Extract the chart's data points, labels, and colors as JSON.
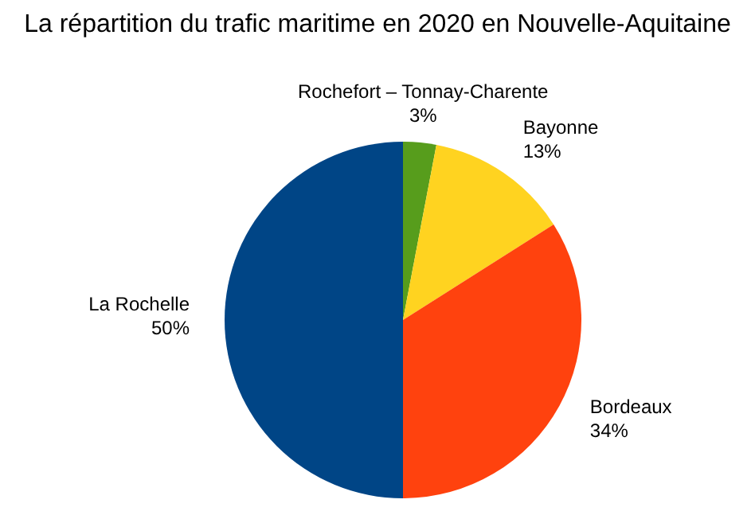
{
  "chart_data": {
    "type": "pie",
    "title": "La répartition du trafic maritime en 2020 en Nouvelle-Aquitaine",
    "categories": [
      "Rochefort – Tonnay-Charente",
      "Bayonne",
      "Bordeaux",
      "La Rochelle"
    ],
    "values": [
      3,
      13,
      34,
      50
    ],
    "colors": [
      "#579d1c",
      "#ffd320",
      "#ff420e",
      "#004586"
    ],
    "value_labels": [
      "3%",
      "13%",
      "34%",
      "50%"
    ],
    "legend": false
  }
}
